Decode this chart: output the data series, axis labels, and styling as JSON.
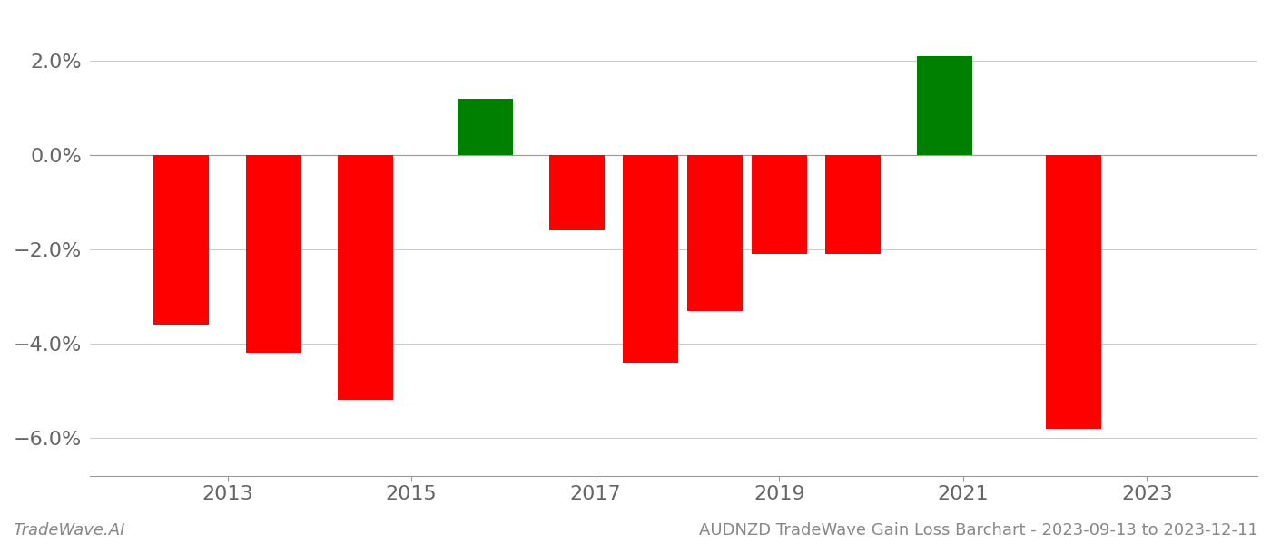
{
  "bars": [
    {
      "year": 2012.5,
      "value": -0.036,
      "color": "#ff0000"
    },
    {
      "year": 2013.5,
      "value": -0.042,
      "color": "#ff0000"
    },
    {
      "year": 2014.5,
      "value": -0.052,
      "color": "#ff0000"
    },
    {
      "year": 2015.8,
      "value": 0.012,
      "color": "#008000"
    },
    {
      "year": 2016.8,
      "value": -0.016,
      "color": "#ff0000"
    },
    {
      "year": 2017.6,
      "value": -0.044,
      "color": "#ff0000"
    },
    {
      "year": 2018.3,
      "value": -0.033,
      "color": "#ff0000"
    },
    {
      "year": 2019.0,
      "value": -0.021,
      "color": "#ff0000"
    },
    {
      "year": 2019.8,
      "value": -0.021,
      "color": "#ff0000"
    },
    {
      "year": 2020.8,
      "value": 0.021,
      "color": "#008000"
    },
    {
      "year": 2022.2,
      "value": -0.058,
      "color": "#ff0000"
    }
  ],
  "bar_width": 0.6,
  "xlim": [
    2011.5,
    2024.2
  ],
  "ylim": [
    -0.068,
    0.03
  ],
  "yticks": [
    -0.06,
    -0.04,
    -0.02,
    0.0,
    0.02
  ],
  "xticks": [
    2013,
    2015,
    2017,
    2019,
    2021,
    2023
  ],
  "xlabel": "",
  "ylabel": "",
  "title": "",
  "footer_left": "TradeWave.AI",
  "footer_right": "AUDNZD TradeWave Gain Loss Barchart - 2023-09-13 to 2023-12-11",
  "grid_color": "#cccccc",
  "axis_color": "#999999",
  "tick_color": "#666666",
  "background_color": "#ffffff"
}
